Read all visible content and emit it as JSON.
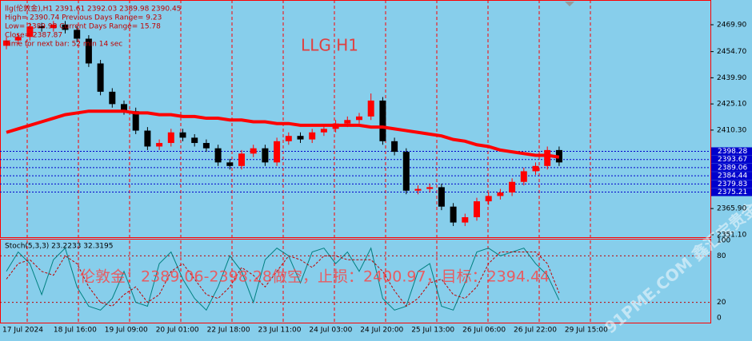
{
  "chart_data": {
    "type": "candlestick",
    "header": [
      "llg(伦敦金),H1  2391.61 2392.03 2389.98 2390.45",
      "High= 2390.74   Previous Days Range= 9.23",
      "Low= 2389.98   Current Days Range= 15.78",
      "Close= 2387.87",
      "Time for next bar: 52 min 14 sec"
    ],
    "title": "LLG H1",
    "annotation": "伦敦金：2389.06-2398.28做空，止损：2400.97，目标：2394.44",
    "watermark": "91PME.COM 鑫汇宝贵金属",
    "up_color": "#ff0000",
    "down_color": "#000000",
    "open": [
      2458,
      2461,
      2463,
      2469,
      2468,
      2470,
      2467,
      2462,
      2448,
      2432,
      2425,
      2421,
      2410,
      2401,
      2403,
      2409,
      2406,
      2403,
      2400,
      2392,
      2390,
      2397,
      2400,
      2392,
      2404,
      2407,
      2405,
      2409,
      2411,
      2414,
      2416,
      2418,
      2427,
      2404,
      2398,
      2376,
      2377,
      2378,
      2367,
      2358,
      2361,
      2370,
      2373,
      2375,
      2381,
      2387,
      2390,
      2399
    ],
    "high": [
      2463,
      2465,
      2471,
      2471,
      2472,
      2472,
      2469,
      2464,
      2450,
      2434,
      2427,
      2423,
      2412,
      2405,
      2411,
      2411,
      2408,
      2405,
      2402,
      2394,
      2399,
      2402,
      2402,
      2406,
      2409,
      2409,
      2411,
      2413,
      2416,
      2418,
      2420,
      2431,
      2429,
      2406,
      2400,
      2379,
      2380,
      2380,
      2369,
      2363,
      2372,
      2375,
      2377,
      2383,
      2389,
      2392,
      2401,
      2401
    ],
    "low": [
      2456,
      2459,
      2461,
      2466,
      2466,
      2465,
      2460,
      2446,
      2430,
      2423,
      2419,
      2408,
      2399,
      2399,
      2401,
      2404,
      2401,
      2398,
      2390,
      2388,
      2388,
      2395,
      2390,
      2390,
      2402,
      2403,
      2403,
      2407,
      2409,
      2412,
      2414,
      2416,
      2402,
      2396,
      2374,
      2374,
      2375,
      2365,
      2356,
      2356,
      2359,
      2368,
      2371,
      2373,
      2379,
      2385,
      2388,
      2390
    ],
    "close": [
      2461,
      2463,
      2469,
      2468,
      2470,
      2467,
      2462,
      2448,
      2432,
      2425,
      2421,
      2410,
      2401,
      2403,
      2409,
      2406,
      2403,
      2400,
      2392,
      2390,
      2397,
      2400,
      2392,
      2404,
      2407,
      2405,
      2409,
      2411,
      2414,
      2416,
      2418,
      2427,
      2404,
      2398,
      2376,
      2377,
      2378,
      2367,
      2358,
      2361,
      2370,
      2373,
      2375,
      2381,
      2387,
      2390,
      2399,
      2392
    ],
    "ma": {
      "color": "#ff0000",
      "values": [
        2409,
        2411,
        2413,
        2415,
        2417,
        2419,
        2420,
        2421,
        2421,
        2421,
        2421,
        2420,
        2420,
        2419,
        2419,
        2418,
        2418,
        2417,
        2417,
        2416,
        2416,
        2415,
        2415,
        2414,
        2414,
        2413,
        2413,
        2413,
        2413,
        2413,
        2413,
        2412,
        2412,
        2411,
        2410,
        2409,
        2408,
        2407,
        2405,
        2404,
        2402,
        2401,
        2399,
        2398,
        2397,
        2396,
        2396,
        2395
      ]
    },
    "ylim": [
      2483.9,
      2349.7
    ],
    "yticks": [
      {
        "value": 2469.9,
        "label": "2469.90"
      },
      {
        "value": 2454.7,
        "label": "2454.70"
      },
      {
        "value": 2439.9,
        "label": "2439.90"
      },
      {
        "value": 2425.1,
        "label": "2425.10"
      },
      {
        "value": 2410.3,
        "label": "2410.30"
      },
      {
        "value": 2365.9,
        "label": "2365.90"
      },
      {
        "value": 2351.1,
        "label": "2351.10"
      }
    ],
    "levels": [
      {
        "value": 2398.28,
        "label": "2398.28"
      },
      {
        "value": 2393.67,
        "label": "2393.67"
      },
      {
        "value": 2389.06,
        "label": "2389.06"
      },
      {
        "value": 2384.44,
        "label": "2384.44"
      },
      {
        "value": 2379.83,
        "label": "2379.83"
      },
      {
        "value": 2375.21,
        "label": "2375.21"
      }
    ],
    "level_color": "#0000cc",
    "x_labels": [
      "17 Jul 2024",
      "18 Jul 16:00",
      "19 Jul 09:00",
      "20 Jul 01:00",
      "22 Jul 18:00",
      "23 Jul 11:00",
      "24 Jul 03:00",
      "24 Jul 20:00",
      "25 Jul 13:00",
      "26 Jul 06:00",
      "26 Jul 22:00",
      "29 Jul 15:00"
    ],
    "stoch": {
      "label": "Stoch(5,3,3) 23.2233 32.3195",
      "ylim": [
        0,
        100
      ],
      "yticks": [
        100,
        80,
        20,
        0
      ],
      "series": [
        {
          "color": "#008080",
          "values": [
            60,
            85,
            70,
            30,
            75,
            90,
            40,
            15,
            10,
            25,
            60,
            20,
            15,
            70,
            85,
            50,
            25,
            10,
            40,
            80,
            60,
            20,
            75,
            90,
            80,
            45,
            85,
            90,
            70,
            85,
            60,
            90,
            25,
            10,
            15,
            60,
            70,
            15,
            10,
            45,
            85,
            90,
            80,
            85,
            90,
            70,
            55,
            23
          ]
        },
        {
          "color": "#c00000",
          "values": [
            50,
            70,
            75,
            60,
            55,
            80,
            70,
            40,
            20,
            15,
            30,
            40,
            20,
            30,
            60,
            70,
            50,
            30,
            25,
            40,
            65,
            55,
            40,
            60,
            80,
            75,
            65,
            80,
            80,
            75,
            75,
            75,
            60,
            35,
            15,
            25,
            45,
            50,
            30,
            25,
            40,
            70,
            85,
            85,
            85,
            85,
            70,
            32
          ]
        }
      ]
    }
  }
}
